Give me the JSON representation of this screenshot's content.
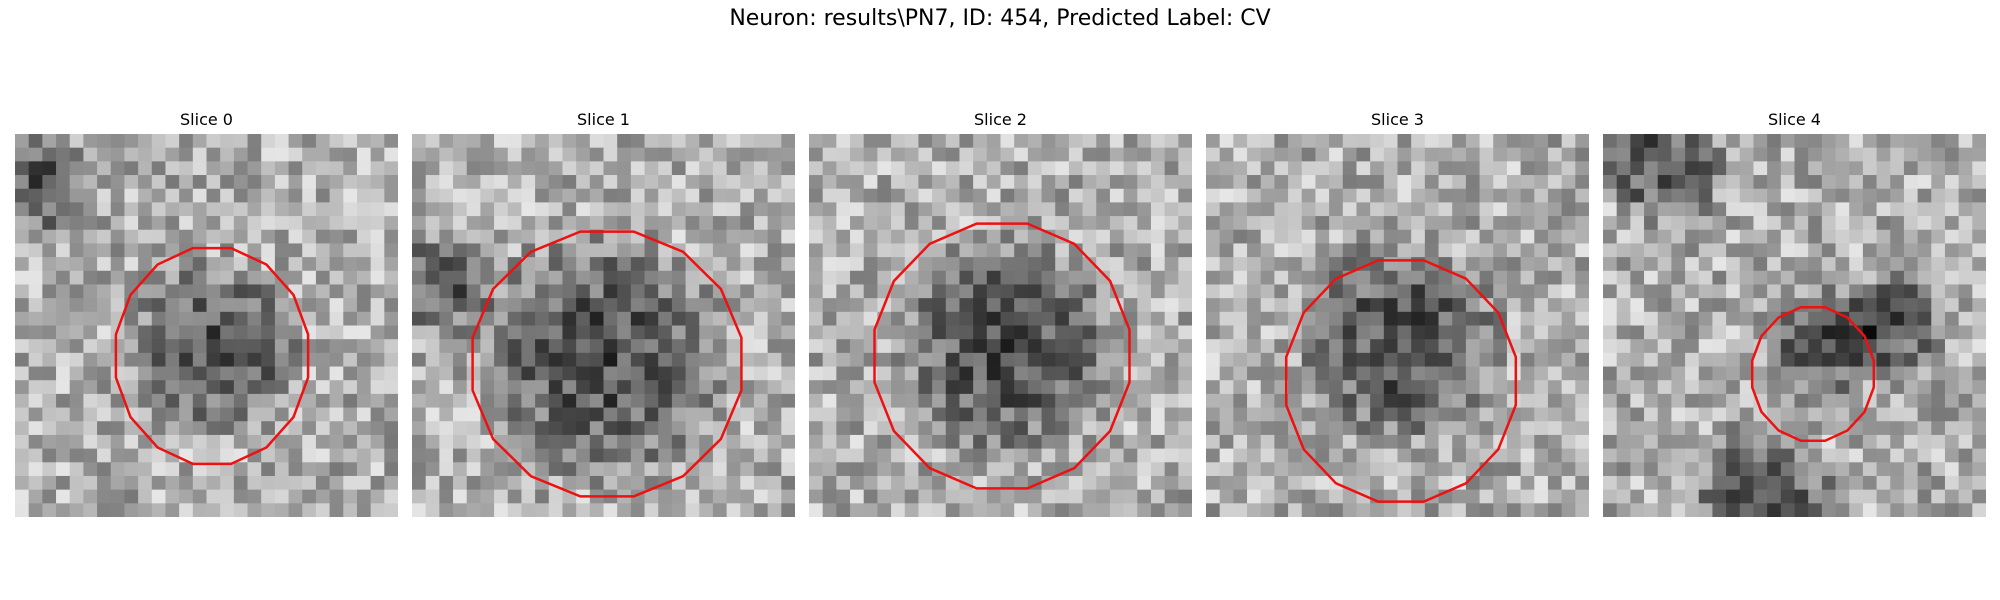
{
  "figure": {
    "title": "Neuron: results\\PN7, ID: 454, Predicted Label: CV",
    "colormap": "gray",
    "contour_color": "#ee1111",
    "slices": [
      {
        "label": "Slice 0"
      },
      {
        "label": "Slice 1"
      },
      {
        "label": "Slice 2"
      },
      {
        "label": "Slice 3"
      },
      {
        "label": "Slice 4"
      }
    ]
  }
}
